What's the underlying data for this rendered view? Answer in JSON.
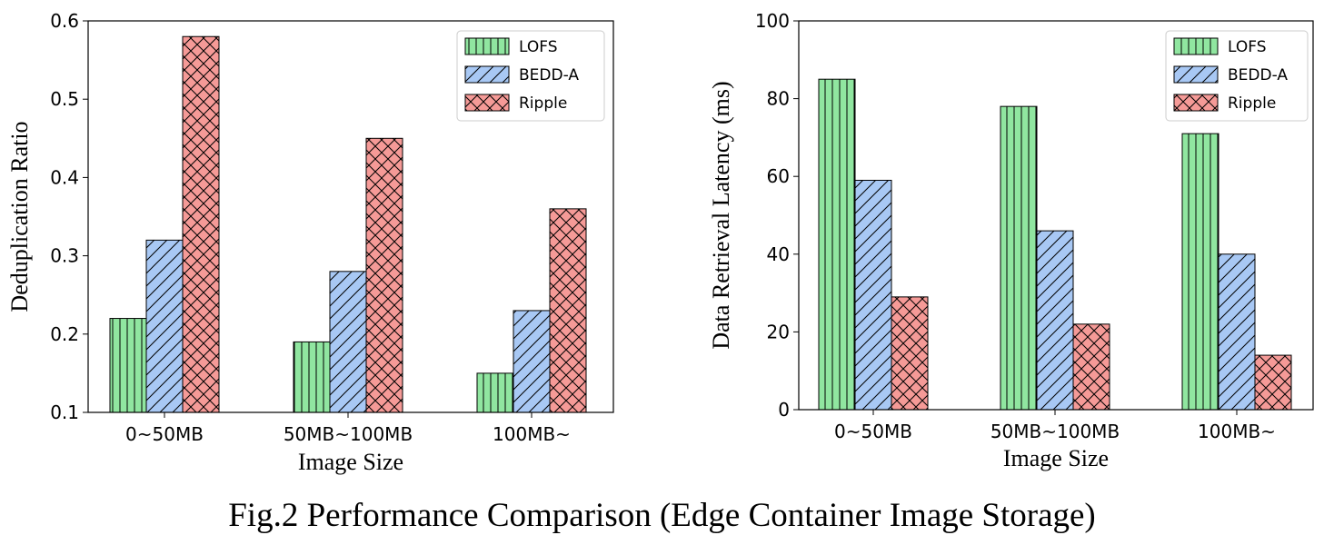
{
  "caption": "Fig.2 Performance Comparison (Edge Container Image Storage)",
  "series_style": [
    {
      "name": "LOFS",
      "color": "#90e6a0",
      "hatch": "vertical-lines"
    },
    {
      "name": "BEDD-A",
      "color": "#a8c8f4",
      "hatch": "diagonal-lines"
    },
    {
      "name": "Ripple",
      "color": "#f59a97",
      "hatch": "cross-hatch"
    }
  ],
  "chart_data": [
    {
      "type": "bar",
      "categories": [
        "0~50MB",
        "50MB~100MB",
        "100MB~"
      ],
      "series": [
        {
          "name": "LOFS",
          "values": [
            0.22,
            0.19,
            0.15
          ]
        },
        {
          "name": "BEDD-A",
          "values": [
            0.32,
            0.28,
            0.23
          ]
        },
        {
          "name": "Ripple",
          "values": [
            0.58,
            0.45,
            0.36
          ]
        }
      ],
      "xlabel": "Image Size",
      "ylabel": "Deduplication Ratio",
      "ylim": [
        0.1,
        0.6
      ],
      "yticks": [
        "0.1",
        "0.2",
        "0.3",
        "0.4",
        "0.5",
        "0.6"
      ],
      "legend": "top-right",
      "grid": false
    },
    {
      "type": "bar",
      "categories": [
        "0~50MB",
        "50MB~100MB",
        "100MB~"
      ],
      "series": [
        {
          "name": "LOFS",
          "values": [
            85,
            78,
            71
          ]
        },
        {
          "name": "BEDD-A",
          "values": [
            59,
            46,
            40
          ]
        },
        {
          "name": "Ripple",
          "values": [
            29,
            22,
            14
          ]
        }
      ],
      "xlabel": "Image Size",
      "ylabel": "Data Retrieval Latency (ms)",
      "ylim": [
        0,
        100
      ],
      "yticks": [
        "0",
        "20",
        "40",
        "60",
        "80",
        "100"
      ],
      "legend": "top-right",
      "grid": false
    }
  ]
}
